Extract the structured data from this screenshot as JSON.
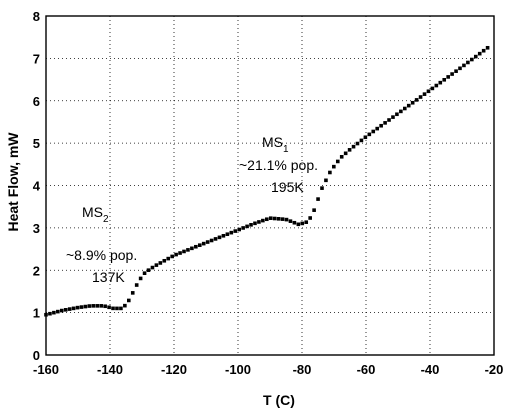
{
  "chart_data": {
    "type": "scatter",
    "title": "",
    "xlabel": "T (C)",
    "ylabel": "Heat Flow, mW",
    "xlim": [
      -160,
      -20
    ],
    "ylim": [
      0,
      8
    ],
    "xticks": [
      "-160",
      "-140",
      "-120",
      "-100",
      "-80",
      "-60",
      "-40",
      "-20"
    ],
    "yticks": [
      "0",
      "1",
      "2",
      "3",
      "4",
      "5",
      "6",
      "7",
      "8"
    ],
    "grid": true,
    "marker_color": "#000000",
    "anchors": [
      [
        -160,
        0.95
      ],
      [
        -155,
        1.05
      ],
      [
        -150,
        1.12
      ],
      [
        -146,
        1.16
      ],
      [
        -142,
        1.16
      ],
      [
        -139,
        1.1
      ],
      [
        -136,
        1.1
      ],
      [
        -134,
        1.3
      ],
      [
        -131,
        1.75
      ],
      [
        -129,
        1.95
      ],
      [
        -126,
        2.1
      ],
      [
        -120,
        2.35
      ],
      [
        -110,
        2.65
      ],
      [
        -100,
        2.95
      ],
      [
        -95,
        3.1
      ],
      [
        -90,
        3.23
      ],
      [
        -85,
        3.2
      ],
      [
        -81,
        3.08
      ],
      [
        -78,
        3.15
      ],
      [
        -76,
        3.45
      ],
      [
        -74,
        3.9
      ],
      [
        -71,
        4.35
      ],
      [
        -68,
        4.65
      ],
      [
        -65,
        4.85
      ],
      [
        -60,
        5.15
      ],
      [
        -50,
        5.7
      ],
      [
        -40,
        6.25
      ],
      [
        -30,
        6.8
      ],
      [
        -22,
        7.25
      ]
    ],
    "annotations": [
      {
        "main": "MS",
        "sub": "2",
        "line2": "~8.9% pop.",
        "line3": "137K"
      },
      {
        "main": "MS",
        "sub": "1",
        "line2": "~21.1% pop.",
        "line3": "195K"
      }
    ]
  }
}
